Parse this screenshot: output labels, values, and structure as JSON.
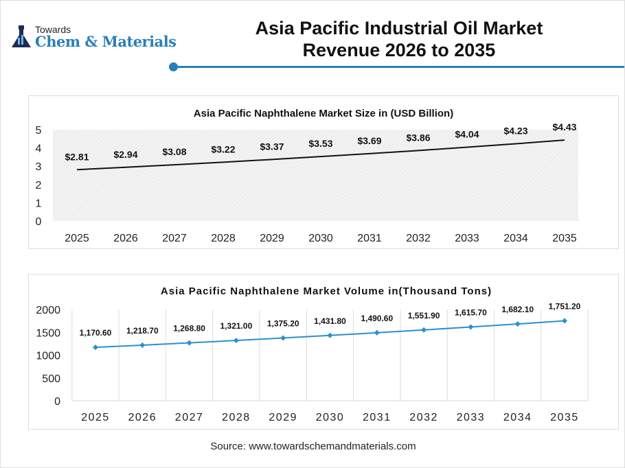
{
  "logo": {
    "line1": "Towards",
    "line2": "Chem & Materials"
  },
  "header": {
    "title_line1": "Asia Pacific Industrial Oil Market",
    "title_line2": "Revenue 2026 to 2035"
  },
  "source": "Source: www.towardschemandmaterials.com",
  "colors": {
    "accent": "#2a7fb8",
    "line1": "#111111",
    "line2": "#2a8fd0"
  },
  "chart_data": [
    {
      "type": "line",
      "title": "Asia Pacific Naphthalene Market Size in (USD Billion)",
      "categories": [
        "2025",
        "2026",
        "2027",
        "2028",
        "2029",
        "2030",
        "2031",
        "2032",
        "2033",
        "2034",
        "2035"
      ],
      "values": [
        2.81,
        2.94,
        3.08,
        3.22,
        3.37,
        3.53,
        3.69,
        3.86,
        4.04,
        4.23,
        4.43
      ],
      "labels": [
        "$2.81",
        "$2.94",
        "$3.08",
        "$3.22",
        "$3.37",
        "$3.53",
        "$3.69",
        "$3.86",
        "$4.04",
        "$4.23",
        "$4.43"
      ],
      "yticks": [
        "0",
        "1",
        "2",
        "3",
        "4",
        "5"
      ],
      "ylim": [
        0,
        5
      ],
      "grid": false
    },
    {
      "type": "line",
      "title": "Asia Pacific Naphthalene Market Volume in(Thousand Tons)",
      "categories": [
        "2025",
        "2026",
        "2027",
        "2028",
        "2029",
        "2030",
        "2031",
        "2032",
        "2033",
        "2034",
        "2035"
      ],
      "values": [
        1170.6,
        1218.7,
        1268.8,
        1321.0,
        1375.2,
        1431.8,
        1490.6,
        1551.9,
        1615.7,
        1682.1,
        1751.2
      ],
      "labels": [
        "1,170.60",
        "1,218.70",
        "1,268.80",
        "1,321.00",
        "1,375.20",
        "1,431.80",
        "1,490.60",
        "1,551.90",
        "1,615.70",
        "1,682.10",
        "1,751.20"
      ],
      "yticks": [
        "0",
        "500",
        "1000",
        "1500",
        "2000"
      ],
      "ylim": [
        0,
        2000
      ],
      "grid": true,
      "markers": "diamond"
    }
  ]
}
